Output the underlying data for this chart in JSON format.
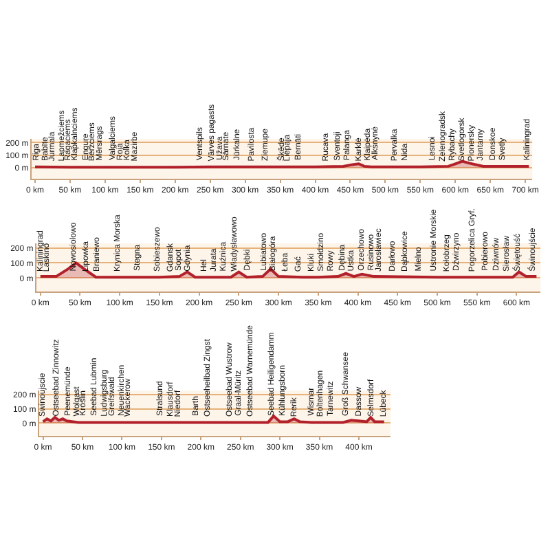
{
  "chart_data": [
    {
      "type": "area",
      "grid": "y",
      "line_style": "solid",
      "marker": "none",
      "x": [
        0,
        50,
        100,
        150,
        200,
        250,
        300,
        350,
        400,
        440,
        455,
        462,
        470,
        480,
        500,
        550,
        590,
        600,
        610,
        620,
        640,
        660,
        680,
        700,
        705
      ],
      "series": [
        {
          "color": "#b2202a",
          "values": [
            5,
            3,
            3,
            3,
            3,
            5,
            5,
            5,
            5,
            10,
            25,
            30,
            10,
            5,
            5,
            5,
            10,
            30,
            50,
            35,
            10,
            10,
            10,
            10,
            10
          ]
        }
      ],
      "xlim": [
        -5,
        710
      ],
      "ylim": [
        -90,
        230
      ],
      "xticks": [
        {
          "value": 0,
          "label": "0 km"
        },
        {
          "value": 50,
          "label": "50 km"
        },
        {
          "value": 100,
          "label": "100 km"
        },
        {
          "value": 150,
          "label": "150 km"
        },
        {
          "value": 200,
          "label": "200 km"
        },
        {
          "value": 250,
          "label": "250 km"
        },
        {
          "value": 300,
          "label": "300 km"
        },
        {
          "value": 350,
          "label": "350 km"
        },
        {
          "value": 400,
          "label": "400 km"
        },
        {
          "value": 450,
          "label": "450 km"
        },
        {
          "value": 500,
          "label": "500 km"
        },
        {
          "value": 550,
          "label": "550 km"
        },
        {
          "value": 600,
          "label": "600 km"
        },
        {
          "value": 650,
          "label": "650 km"
        },
        {
          "value": 700,
          "label": "700 km"
        }
      ],
      "yticks": [
        {
          "value": 0,
          "label": "0 m"
        },
        {
          "value": 100,
          "label": "100 m"
        },
        {
          "value": 200,
          "label": "200 m"
        }
      ],
      "annotations": [
        {
          "text": "Riga",
          "x": 2,
          "y": 0
        },
        {
          "text": "Babīte",
          "x": 15,
          "y": 0
        },
        {
          "text": "Jurmala",
          "x": 25,
          "y": 0
        },
        {
          "text": "Lapmežciems",
          "x": 38,
          "y": 0
        },
        {
          "text": "Ragaciems",
          "x": 48,
          "y": 0
        },
        {
          "text": "Klapkalnciems",
          "x": 57,
          "y": 0
        },
        {
          "text": "Engure",
          "x": 73,
          "y": 0
        },
        {
          "text": "Bērzciems",
          "x": 82,
          "y": 0
        },
        {
          "text": "Mērsrags",
          "x": 92,
          "y": 0
        },
        {
          "text": "Valgalciems",
          "x": 112,
          "y": 0
        },
        {
          "text": "Roja",
          "x": 121,
          "y": 0
        },
        {
          "text": "Kolka",
          "x": 132,
          "y": 0
        },
        {
          "text": "Mazirbe",
          "x": 143,
          "y": 0
        },
        {
          "text": "Ventspils",
          "x": 236,
          "y": 0
        },
        {
          "text": "Vārves pagasts",
          "x": 252,
          "y": 0
        },
        {
          "text": "Užava",
          "x": 265,
          "y": 0
        },
        {
          "text": "Sārnate",
          "x": 274,
          "y": 0
        },
        {
          "text": "Jūrkalne",
          "x": 288,
          "y": 0
        },
        {
          "text": "Pavilosta",
          "x": 309,
          "y": 0
        },
        {
          "text": "Ziemupe",
          "x": 329,
          "y": 0
        },
        {
          "text": "Šķēde",
          "x": 351,
          "y": 0
        },
        {
          "text": "Liepaja",
          "x": 361,
          "y": 0
        },
        {
          "text": "Bernāti",
          "x": 376,
          "y": 0
        },
        {
          "text": "Rucava",
          "x": 415,
          "y": 0
        },
        {
          "text": "Sventoji",
          "x": 432,
          "y": 0
        },
        {
          "text": "Palanga",
          "x": 445,
          "y": 0
        },
        {
          "text": "Karklė",
          "x": 463,
          "y": 0
        },
        {
          "text": "Klaipėda",
          "x": 476,
          "y": 0
        },
        {
          "text": "Alksnynė",
          "x": 486,
          "y": 0
        },
        {
          "text": "Pervalka",
          "x": 514,
          "y": 0
        },
        {
          "text": "Nida",
          "x": 528,
          "y": 0
        },
        {
          "text": "Lesnoi",
          "x": 568,
          "y": 0
        },
        {
          "text": "Zelenogradsk",
          "x": 582,
          "y": 0
        },
        {
          "text": "Rybachy",
          "x": 595,
          "y": 0
        },
        {
          "text": "Svetlogorsk",
          "x": 610,
          "y": 0
        },
        {
          "text": "Pionersky",
          "x": 624,
          "y": 0
        },
        {
          "text": "Jantarny",
          "x": 636,
          "y": 0
        },
        {
          "text": "Donskoe",
          "x": 654,
          "y": 0
        },
        {
          "text": "Svetly",
          "x": 668,
          "y": 0
        },
        {
          "text": "Kaliningrad",
          "x": 703,
          "y": 0
        }
      ]
    },
    {
      "type": "area",
      "grid": "y",
      "line_style": "solid",
      "marker": "none",
      "x": [
        0,
        20,
        35,
        45,
        55,
        70,
        100,
        150,
        175,
        185,
        195,
        240,
        250,
        260,
        280,
        290,
        300,
        330,
        350,
        375,
        385,
        395,
        405,
        420,
        500,
        595,
        603,
        612,
        625
      ],
      "series": [
        {
          "color": "#b2202a",
          "values": [
            10,
            10,
            60,
            100,
            60,
            5,
            5,
            5,
            10,
            40,
            5,
            5,
            40,
            5,
            10,
            60,
            10,
            5,
            5,
            10,
            30,
            10,
            25,
            10,
            5,
            5,
            40,
            10,
            10
          ]
        }
      ],
      "xlim": [
        -5,
        630
      ],
      "ylim": [
        -90,
        230
      ],
      "xticks": [
        {
          "value": 0,
          "label": "0 km"
        },
        {
          "value": 50,
          "label": "50 km"
        },
        {
          "value": 100,
          "label": "100 km"
        },
        {
          "value": 150,
          "label": "150 km"
        },
        {
          "value": 200,
          "label": "200 km"
        },
        {
          "value": 250,
          "label": "250 km"
        },
        {
          "value": 300,
          "label": "300 km"
        },
        {
          "value": 350,
          "label": "350 km"
        },
        {
          "value": 400,
          "label": "400 km"
        },
        {
          "value": 450,
          "label": "450 km"
        },
        {
          "value": 500,
          "label": "500 km"
        },
        {
          "value": 550,
          "label": "550 km"
        },
        {
          "value": 600,
          "label": "600 km"
        }
      ],
      "yticks": [
        {
          "value": 0,
          "label": "0 m"
        },
        {
          "value": 100,
          "label": "100 m"
        },
        {
          "value": 200,
          "label": "200 m"
        }
      ],
      "annotations": [
        {
          "text": "Kaliningrad",
          "x": 0,
          "y": 0
        },
        {
          "text": "Laskino",
          "x": 8,
          "y": 0
        },
        {
          "text": "Nowosiolowo",
          "x": 41,
          "y": 0
        },
        {
          "text": "Lipowka",
          "x": 58,
          "y": 0
        },
        {
          "text": "Braniewo",
          "x": 71,
          "y": 0
        },
        {
          "text": "Krynica Morska",
          "x": 97,
          "y": 0
        },
        {
          "text": "Stegna",
          "x": 122,
          "y": 0
        },
        {
          "text": "Sobieszewo",
          "x": 148,
          "y": 0
        },
        {
          "text": "Gdansk",
          "x": 163,
          "y": 0
        },
        {
          "text": "Sopot",
          "x": 174,
          "y": 0
        },
        {
          "text": "Gdynia",
          "x": 185,
          "y": 0
        },
        {
          "text": "Hel",
          "x": 207,
          "y": 0
        },
        {
          "text": "Jurata",
          "x": 219,
          "y": 0
        },
        {
          "text": "Kuźnica",
          "x": 230,
          "y": 0
        },
        {
          "text": "Władysławowo",
          "x": 244,
          "y": 0
        },
        {
          "text": "Dębki",
          "x": 261,
          "y": 0
        },
        {
          "text": "Lubiatowo",
          "x": 281,
          "y": 0
        },
        {
          "text": "Białogóra",
          "x": 292,
          "y": 0
        },
        {
          "text": "Łeba",
          "x": 308,
          "y": 0
        },
        {
          "text": "Gać",
          "x": 325,
          "y": 0
        },
        {
          "text": "Kluki",
          "x": 342,
          "y": 0
        },
        {
          "text": "Smołdzino",
          "x": 354,
          "y": 0
        },
        {
          "text": "Rowy",
          "x": 366,
          "y": 0
        },
        {
          "text": "Dębina",
          "x": 380,
          "y": 0
        },
        {
          "text": "Ustka",
          "x": 391,
          "y": 0
        },
        {
          "text": "Orzechowo",
          "x": 405,
          "y": 0
        },
        {
          "text": "Rusinowo",
          "x": 417,
          "y": 0
        },
        {
          "text": "Jarosławiec",
          "x": 427,
          "y": 0
        },
        {
          "text": "Darłowo",
          "x": 444,
          "y": 0
        },
        {
          "text": "Dąbkowice",
          "x": 459,
          "y": 0
        },
        {
          "text": "Mielno",
          "x": 476,
          "y": 0
        },
        {
          "text": "Ustronie Morskie",
          "x": 495,
          "y": 0
        },
        {
          "text": "Kołobrzeg",
          "x": 512,
          "y": 0
        },
        {
          "text": "Dźwirzyno",
          "x": 524,
          "y": 0
        },
        {
          "text": "Pogorzelica Gryf.",
          "x": 544,
          "y": 0
        },
        {
          "text": "Pobierowo",
          "x": 561,
          "y": 0
        },
        {
          "text": "Dziwnów",
          "x": 575,
          "y": 0
        },
        {
          "text": "Sierosław",
          "x": 588,
          "y": 0
        },
        {
          "text": "Świętouść",
          "x": 600,
          "y": 0
        },
        {
          "text": "Świnoujście",
          "x": 620,
          "y": 0
        }
      ]
    },
    {
      "type": "area",
      "grid": "y",
      "line_style": "solid",
      "marker": "none",
      "x": [
        0,
        5,
        10,
        15,
        20,
        25,
        30,
        45,
        60,
        100,
        150,
        200,
        250,
        285,
        292,
        300,
        310,
        318,
        325,
        340,
        380,
        390,
        400,
        410,
        415,
        420,
        432
      ],
      "series": [
        {
          "color": "#b2202a",
          "values": [
            10,
            30,
            15,
            40,
            20,
            30,
            15,
            5,
            5,
            5,
            5,
            5,
            5,
            5,
            50,
            10,
            10,
            30,
            10,
            5,
            5,
            20,
            15,
            10,
            40,
            10,
            10
          ]
        }
      ],
      "xlim": [
        -5,
        440
      ],
      "ylim": [
        -90,
        230
      ],
      "xticks": [
        {
          "value": 0,
          "label": "0 km"
        },
        {
          "value": 50,
          "label": "50 km"
        },
        {
          "value": 100,
          "label": "100 km"
        },
        {
          "value": 150,
          "label": "150 km"
        },
        {
          "value": 200,
          "label": "200 km"
        },
        {
          "value": 250,
          "label": "250 km"
        },
        {
          "value": 300,
          "label": "300 km"
        },
        {
          "value": 350,
          "label": "350 km"
        },
        {
          "value": 400,
          "label": "400 km"
        }
      ],
      "yticks": [
        {
          "value": 0,
          "label": "0 m"
        },
        {
          "value": 100,
          "label": "100 m"
        },
        {
          "value": 200,
          "label": "200 m"
        }
      ],
      "annotations": [
        {
          "text": "Swinoujscie",
          "x": 0,
          "y": 0
        },
        {
          "text": "Ostseebad Zinnowitz",
          "x": 17,
          "y": 0
        },
        {
          "text": "Peenemünde",
          "x": 32,
          "y": 0
        },
        {
          "text": "Wolgast",
          "x": 43,
          "y": 0
        },
        {
          "text": "Kröslin",
          "x": 51,
          "y": 0
        },
        {
          "text": "Seebad Lubmin",
          "x": 65,
          "y": 0
        },
        {
          "text": "Ludwigsburg",
          "x": 78,
          "y": 0
        },
        {
          "text": "Greifswald",
          "x": 88,
          "y": 0
        },
        {
          "text": "Neuenkirchen",
          "x": 99,
          "y": 0
        },
        {
          "text": "Wackerow",
          "x": 108,
          "y": 0
        },
        {
          "text": "Stralsund",
          "x": 148,
          "y": 0
        },
        {
          "text": "Klausdorf",
          "x": 162,
          "y": 0
        },
        {
          "text": "Niedorf",
          "x": 171,
          "y": 0
        },
        {
          "text": "Barth",
          "x": 194,
          "y": 0
        },
        {
          "text": "Ostseeheilbad Zingst",
          "x": 208,
          "y": 0
        },
        {
          "text": "Ostseebad Wustrow",
          "x": 236,
          "y": 0
        },
        {
          "text": "Graal-Müritz",
          "x": 247,
          "y": 0
        },
        {
          "text": "Ostseebad Warnemünde",
          "x": 262,
          "y": 0
        },
        {
          "text": "Seebad Heiligendamm",
          "x": 289,
          "y": 0
        },
        {
          "text": "Kühlungsborn",
          "x": 303,
          "y": 0
        },
        {
          "text": "Rerik",
          "x": 318,
          "y": 0
        },
        {
          "text": "Wismar",
          "x": 340,
          "y": 0
        },
        {
          "text": "Boltenhagen",
          "x": 352,
          "y": 0
        },
        {
          "text": "Tarnewitz",
          "x": 364,
          "y": 0
        },
        {
          "text": "Groß Schwansee",
          "x": 383,
          "y": 0
        },
        {
          "text": "Dassow",
          "x": 400,
          "y": 0
        },
        {
          "text": "Selmsdorf",
          "x": 415,
          "y": 0
        },
        {
          "text": "Lübeck",
          "x": 432,
          "y": 0
        }
      ]
    }
  ]
}
